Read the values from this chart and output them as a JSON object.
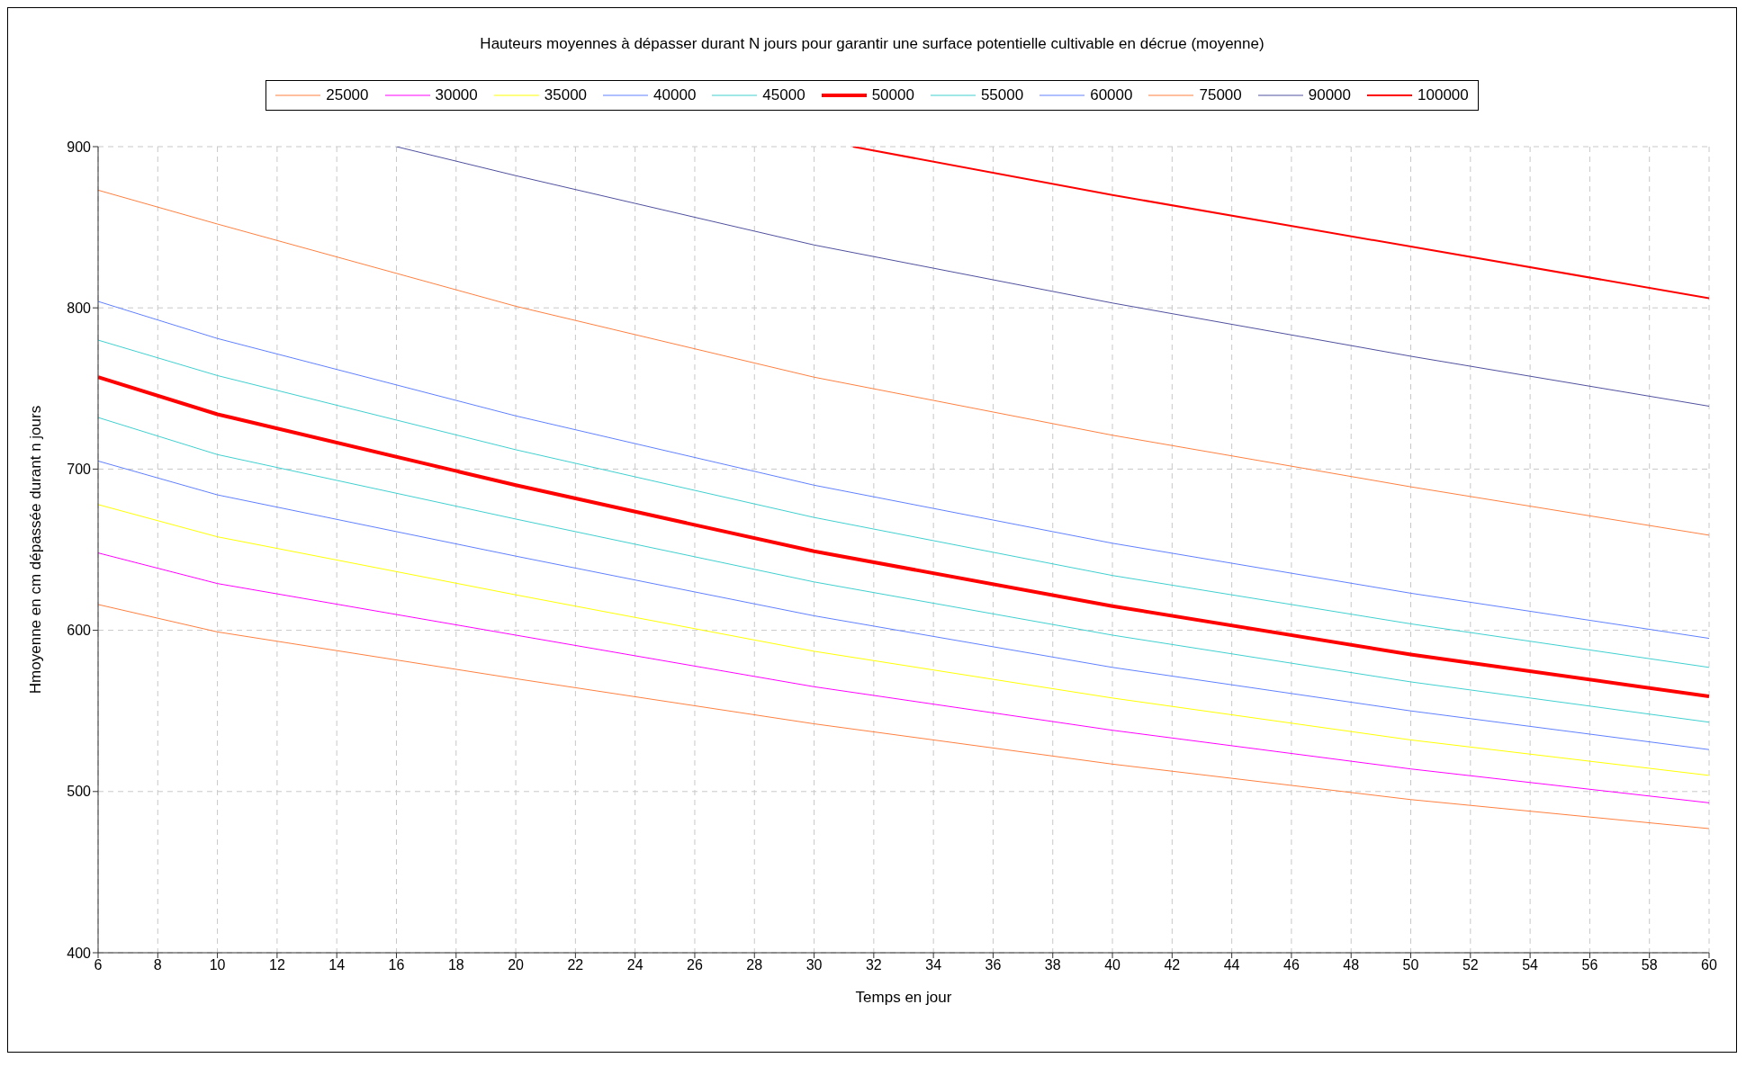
{
  "chart_data": {
    "type": "line",
    "title": "Hauteurs moyennes à dépasser durant N jours pour garantir une surface potentielle cultivable en décrue (moyenne)",
    "xlabel": "Temps en jour",
    "ylabel": "Hmoyenne en cm dépassée durant n jours",
    "x": [
      6,
      10,
      20,
      30,
      40,
      50,
      60
    ],
    "series": [
      {
        "name": "25000",
        "color": "#ff8040",
        "values": [
          616,
          599,
          570,
          542,
          517,
          495,
          477
        ]
      },
      {
        "name": "30000",
        "color": "#ff00ff",
        "values": [
          648,
          629,
          597,
          565,
          538,
          514,
          493
        ]
      },
      {
        "name": "35000",
        "color": "#ffff00",
        "values": [
          678,
          658,
          622,
          587,
          558,
          532,
          510
        ]
      },
      {
        "name": "40000",
        "color": "#6080ff",
        "values": [
          705,
          684,
          646,
          609,
          577,
          550,
          526
        ]
      },
      {
        "name": "45000",
        "color": "#40d0d0",
        "values": [
          732,
          709,
          669,
          630,
          597,
          568,
          543
        ]
      },
      {
        "name": "50000",
        "color": "#ff0000",
        "values": [
          757,
          734,
          690,
          649,
          615,
          585,
          559
        ]
      },
      {
        "name": "55000",
        "color": "#40d0d0",
        "values": [
          780,
          758,
          712,
          670,
          634,
          604,
          577
        ]
      },
      {
        "name": "60000",
        "color": "#6080ff",
        "values": [
          804,
          781,
          733,
          690,
          654,
          623,
          595
        ]
      },
      {
        "name": "75000",
        "color": "#ff8040",
        "values": [
          873,
          852,
          801,
          757,
          721,
          689,
          659
        ]
      },
      {
        "name": "90000",
        "color": "#5050a0",
        "x": [
          16,
          20,
          30,
          40,
          50,
          60
        ],
        "values": [
          900,
          882,
          839,
          803,
          770,
          739
        ]
      },
      {
        "name": "100000",
        "color": "#ff0000",
        "x": [
          31.3,
          40,
          50,
          60
        ],
        "values": [
          900,
          870,
          838,
          806
        ]
      }
    ],
    "xlim": [
      6,
      60
    ],
    "xticks": [
      6,
      8,
      10,
      12,
      14,
      16,
      18,
      20,
      22,
      24,
      26,
      28,
      30,
      32,
      34,
      36,
      38,
      40,
      42,
      44,
      46,
      48,
      50,
      52,
      54,
      56,
      58,
      60
    ],
    "ylim": [
      400,
      900
    ],
    "yticks": [
      400,
      500,
      600,
      700,
      800,
      900
    ],
    "grid": true,
    "legend": "top",
    "marker": "none",
    "line_style": "solid"
  }
}
